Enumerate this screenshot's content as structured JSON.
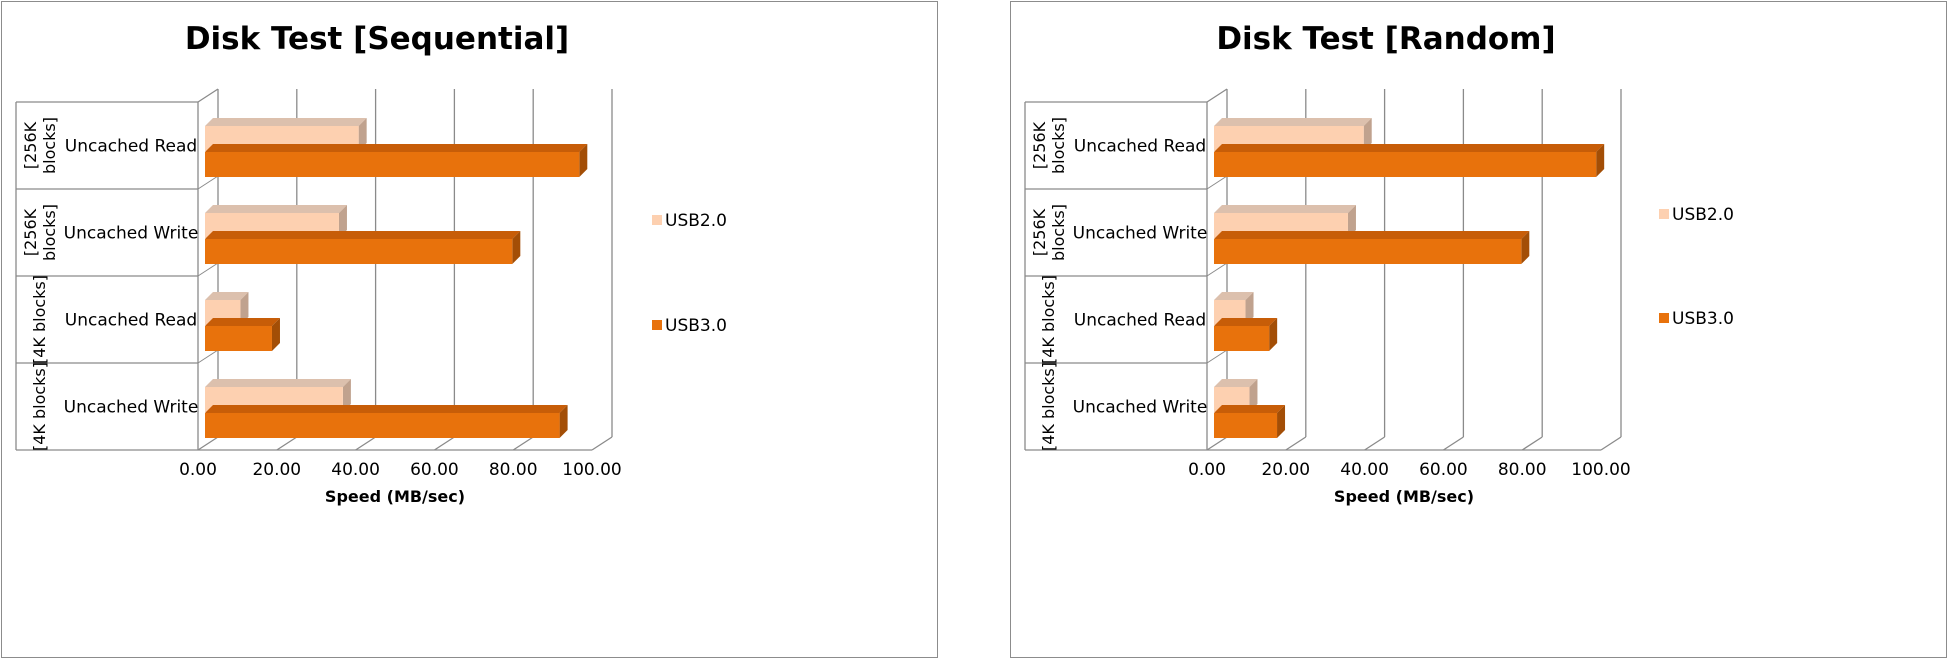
{
  "chart_data": [
    {
      "type": "bar",
      "orientation": "horizontal",
      "style": "3d-clustered",
      "title": "Disk Test [Sequential]",
      "xlabel": "Speed  (MB/sec)",
      "ylabel": "",
      "xlim": [
        0,
        100
      ],
      "ticks": [
        "0.00",
        "20.00",
        "40.00",
        "60.00",
        "80.00",
        "100.00"
      ],
      "grid": true,
      "legend_position": "right",
      "categories": [
        {
          "label": "Uncached Read",
          "group": "[256K blocks]"
        },
        {
          "label": "Uncached Write",
          "group": "[256K blocks]"
        },
        {
          "label": "Uncached Read",
          "group": "[4K blocks]"
        },
        {
          "label": "Uncached Write",
          "group": "[4K blocks]"
        }
      ],
      "series": [
        {
          "name": "USB2.0",
          "values": [
            39,
            34,
            9,
            35
          ],
          "color": "#fdd0b0",
          "side": "#c0a28e",
          "top": "#dcc0ad"
        },
        {
          "name": "USB3.0",
          "values": [
            95,
            78,
            17,
            90
          ],
          "color": "#e8720c",
          "side": "#a34e06",
          "top": "#c75d08"
        }
      ]
    },
    {
      "type": "bar",
      "orientation": "horizontal",
      "style": "3d-clustered",
      "title": "Disk Test [Random]",
      "xlabel": "Speed  (MB/sec)",
      "ylabel": "",
      "xlim": [
        0,
        100
      ],
      "ticks": [
        "0.00",
        "20.00",
        "40.00",
        "60.00",
        "80.00",
        "100.00"
      ],
      "grid": true,
      "legend_position": "right",
      "categories": [
        {
          "label": "Uncached Read",
          "group": "[256K blocks]"
        },
        {
          "label": "Uncached Write",
          "group": "[256K blocks]"
        },
        {
          "label": "Uncached Read",
          "group": "[4K blocks]"
        },
        {
          "label": "Uncached Write",
          "group": "[4K blocks]"
        }
      ],
      "series": [
        {
          "name": "USB2.0",
          "values": [
            38,
            34,
            8,
            9
          ],
          "color": "#fdd0b0",
          "side": "#c0a28e",
          "top": "#dcc0ad"
        },
        {
          "name": "USB3.0",
          "values": [
            97,
            78,
            14,
            16
          ],
          "color": "#e8720c",
          "side": "#a34e06",
          "top": "#c75d08"
        }
      ]
    }
  ]
}
